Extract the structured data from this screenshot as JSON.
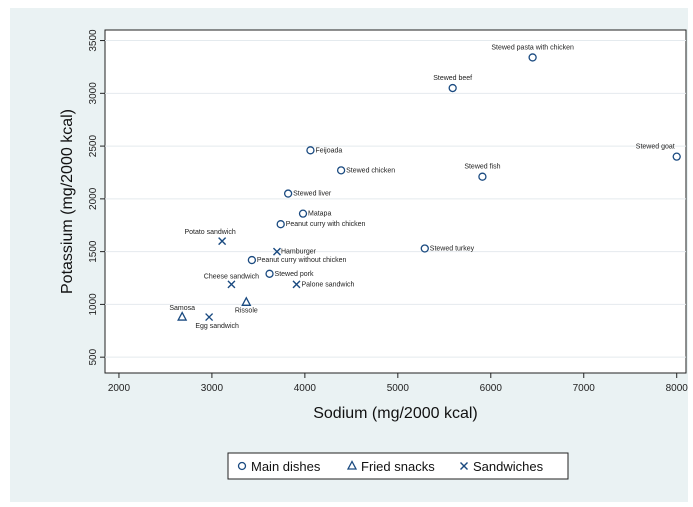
{
  "chart_data": {
    "type": "scatter",
    "xlabel": "Sodium (mg/2000 kcal)",
    "ylabel": "Potassium (mg/2000 kcal)",
    "xlim": [
      1850,
      8100
    ],
    "ylim": [
      350,
      3600
    ],
    "xticks": [
      "2000",
      "3000",
      "4000",
      "5000",
      "6000",
      "7000",
      "8000"
    ],
    "yticks": [
      "500",
      "1000",
      "1500",
      "2000",
      "2500",
      "3000",
      "3500"
    ],
    "grid": "horizontal",
    "legend_position": "bottom",
    "colors": {
      "marker": "#1a4a80",
      "grid": "#e4eaee",
      "panel": "#eaf2f3"
    },
    "series": [
      {
        "name": "Main dishes",
        "marker": "circle",
        "points": [
          {
            "label": "Stewed pasta with chicken",
            "x": 6450,
            "y": 3340
          },
          {
            "label": "Stewed beef",
            "x": 5590,
            "y": 3050
          },
          {
            "label": "Stewed goat",
            "x": 8000,
            "y": 2400
          },
          {
            "label": "Feijoada",
            "x": 4060,
            "y": 2460
          },
          {
            "label": "Stewed chicken",
            "x": 4390,
            "y": 2270
          },
          {
            "label": "Stewed fish",
            "x": 5910,
            "y": 2210
          },
          {
            "label": "Stewed liver",
            "x": 3820,
            "y": 2050
          },
          {
            "label": "Matapa",
            "x": 3980,
            "y": 1860
          },
          {
            "label": "Peanut curry with chicken",
            "x": 3740,
            "y": 1760
          },
          {
            "label": "Stewed turkey",
            "x": 5290,
            "y": 1530
          },
          {
            "label": "Peanut curry without chicken",
            "x": 3430,
            "y": 1420
          },
          {
            "label": "Stewed pork",
            "x": 3620,
            "y": 1290
          }
        ]
      },
      {
        "name": "Fried snacks",
        "marker": "triangle",
        "points": [
          {
            "label": "Samosa",
            "x": 2680,
            "y": 880
          },
          {
            "label": "Rissole",
            "x": 3370,
            "y": 1020
          }
        ]
      },
      {
        "name": "Sandwiches",
        "marker": "x",
        "points": [
          {
            "label": "Potato sandwich",
            "x": 3110,
            "y": 1600
          },
          {
            "label": "Hamburger",
            "x": 3700,
            "y": 1500
          },
          {
            "label": "Cheese sandwich",
            "x": 3210,
            "y": 1190
          },
          {
            "label": "Palone sandwich",
            "x": 3910,
            "y": 1190
          },
          {
            "label": "Egg sandwich",
            "x": 2970,
            "y": 880
          }
        ]
      }
    ]
  }
}
